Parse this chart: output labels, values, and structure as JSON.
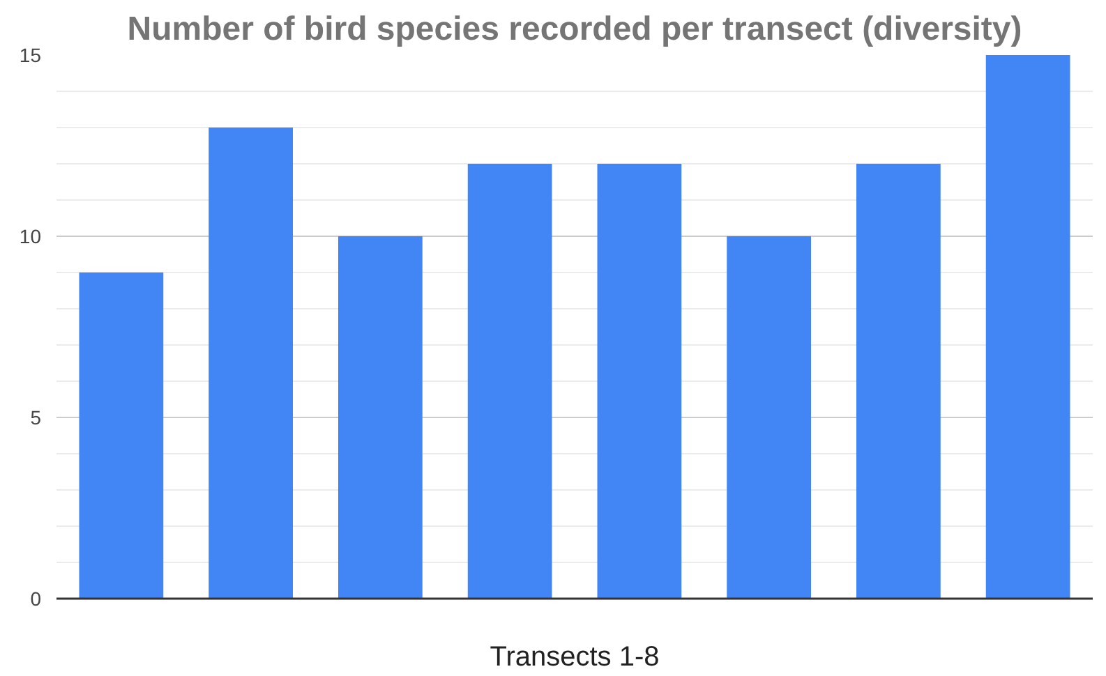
{
  "chart_data": {
    "type": "bar",
    "title": "Number of bird species recorded per transect (diversity)",
    "xlabel": "Transects 1-8",
    "categories": [
      null,
      null,
      null,
      null,
      null,
      null,
      null,
      null
    ],
    "values": [
      9,
      13,
      10,
      12,
      12,
      10,
      12,
      15
    ],
    "color": "#4285f4",
    "ylim": [
      0,
      15
    ],
    "yticks": [
      0,
      {
        "value": 1,
        "label": null
      },
      {
        "value": 2,
        "label": null
      },
      {
        "value": 3,
        "label": null
      },
      {
        "value": 4,
        "label": null
      },
      5,
      {
        "value": 6,
        "label": null
      },
      {
        "value": 7,
        "label": null
      },
      {
        "value": 8,
        "label": null
      },
      {
        "value": 9,
        "label": null
      },
      10,
      {
        "value": 11,
        "label": null
      },
      {
        "value": 12,
        "label": null
      },
      {
        "value": 13,
        "label": null
      },
      {
        "value": 14,
        "label": null
      },
      15
    ],
    "grid": "y"
  }
}
